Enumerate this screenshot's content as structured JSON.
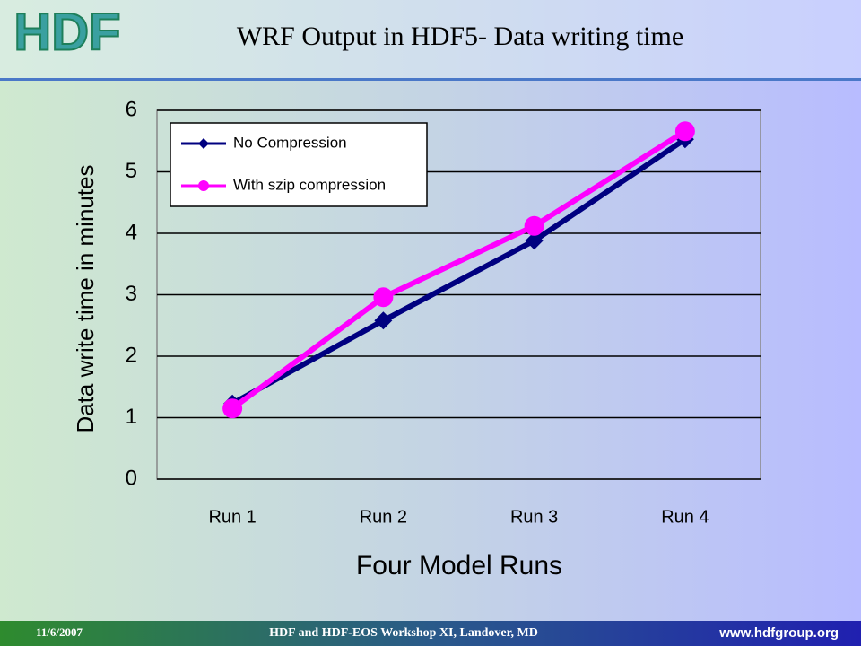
{
  "logo": "HDF",
  "footer": {
    "date": "11/6/2007",
    "text": "HDF and HDF-EOS Workshop XI, Landover, MD",
    "url": "www.hdfgroup.org"
  },
  "chart_data": {
    "type": "line",
    "title": "WRF Output in HDF5- Data writing time",
    "x_label": "Four Model Runs",
    "y_label": "Data write time in minutes",
    "categories": [
      "Run 1",
      "Run 2",
      "Run 3",
      "Run 4"
    ],
    "series": [
      {
        "name": "No Compression",
        "color": "#000080",
        "marker": "diamond",
        "values": [
          1.23,
          2.58,
          3.88,
          5.53
        ]
      },
      {
        "name": "With szip compression",
        "color": "#ff00ff",
        "marker": "circle",
        "values": [
          1.15,
          2.96,
          4.12,
          5.66
        ]
      }
    ],
    "ylim": [
      0,
      6
    ],
    "yticks": [
      0,
      1,
      2,
      3,
      4,
      5,
      6
    ],
    "grid": true,
    "legend": "upper-left"
  }
}
